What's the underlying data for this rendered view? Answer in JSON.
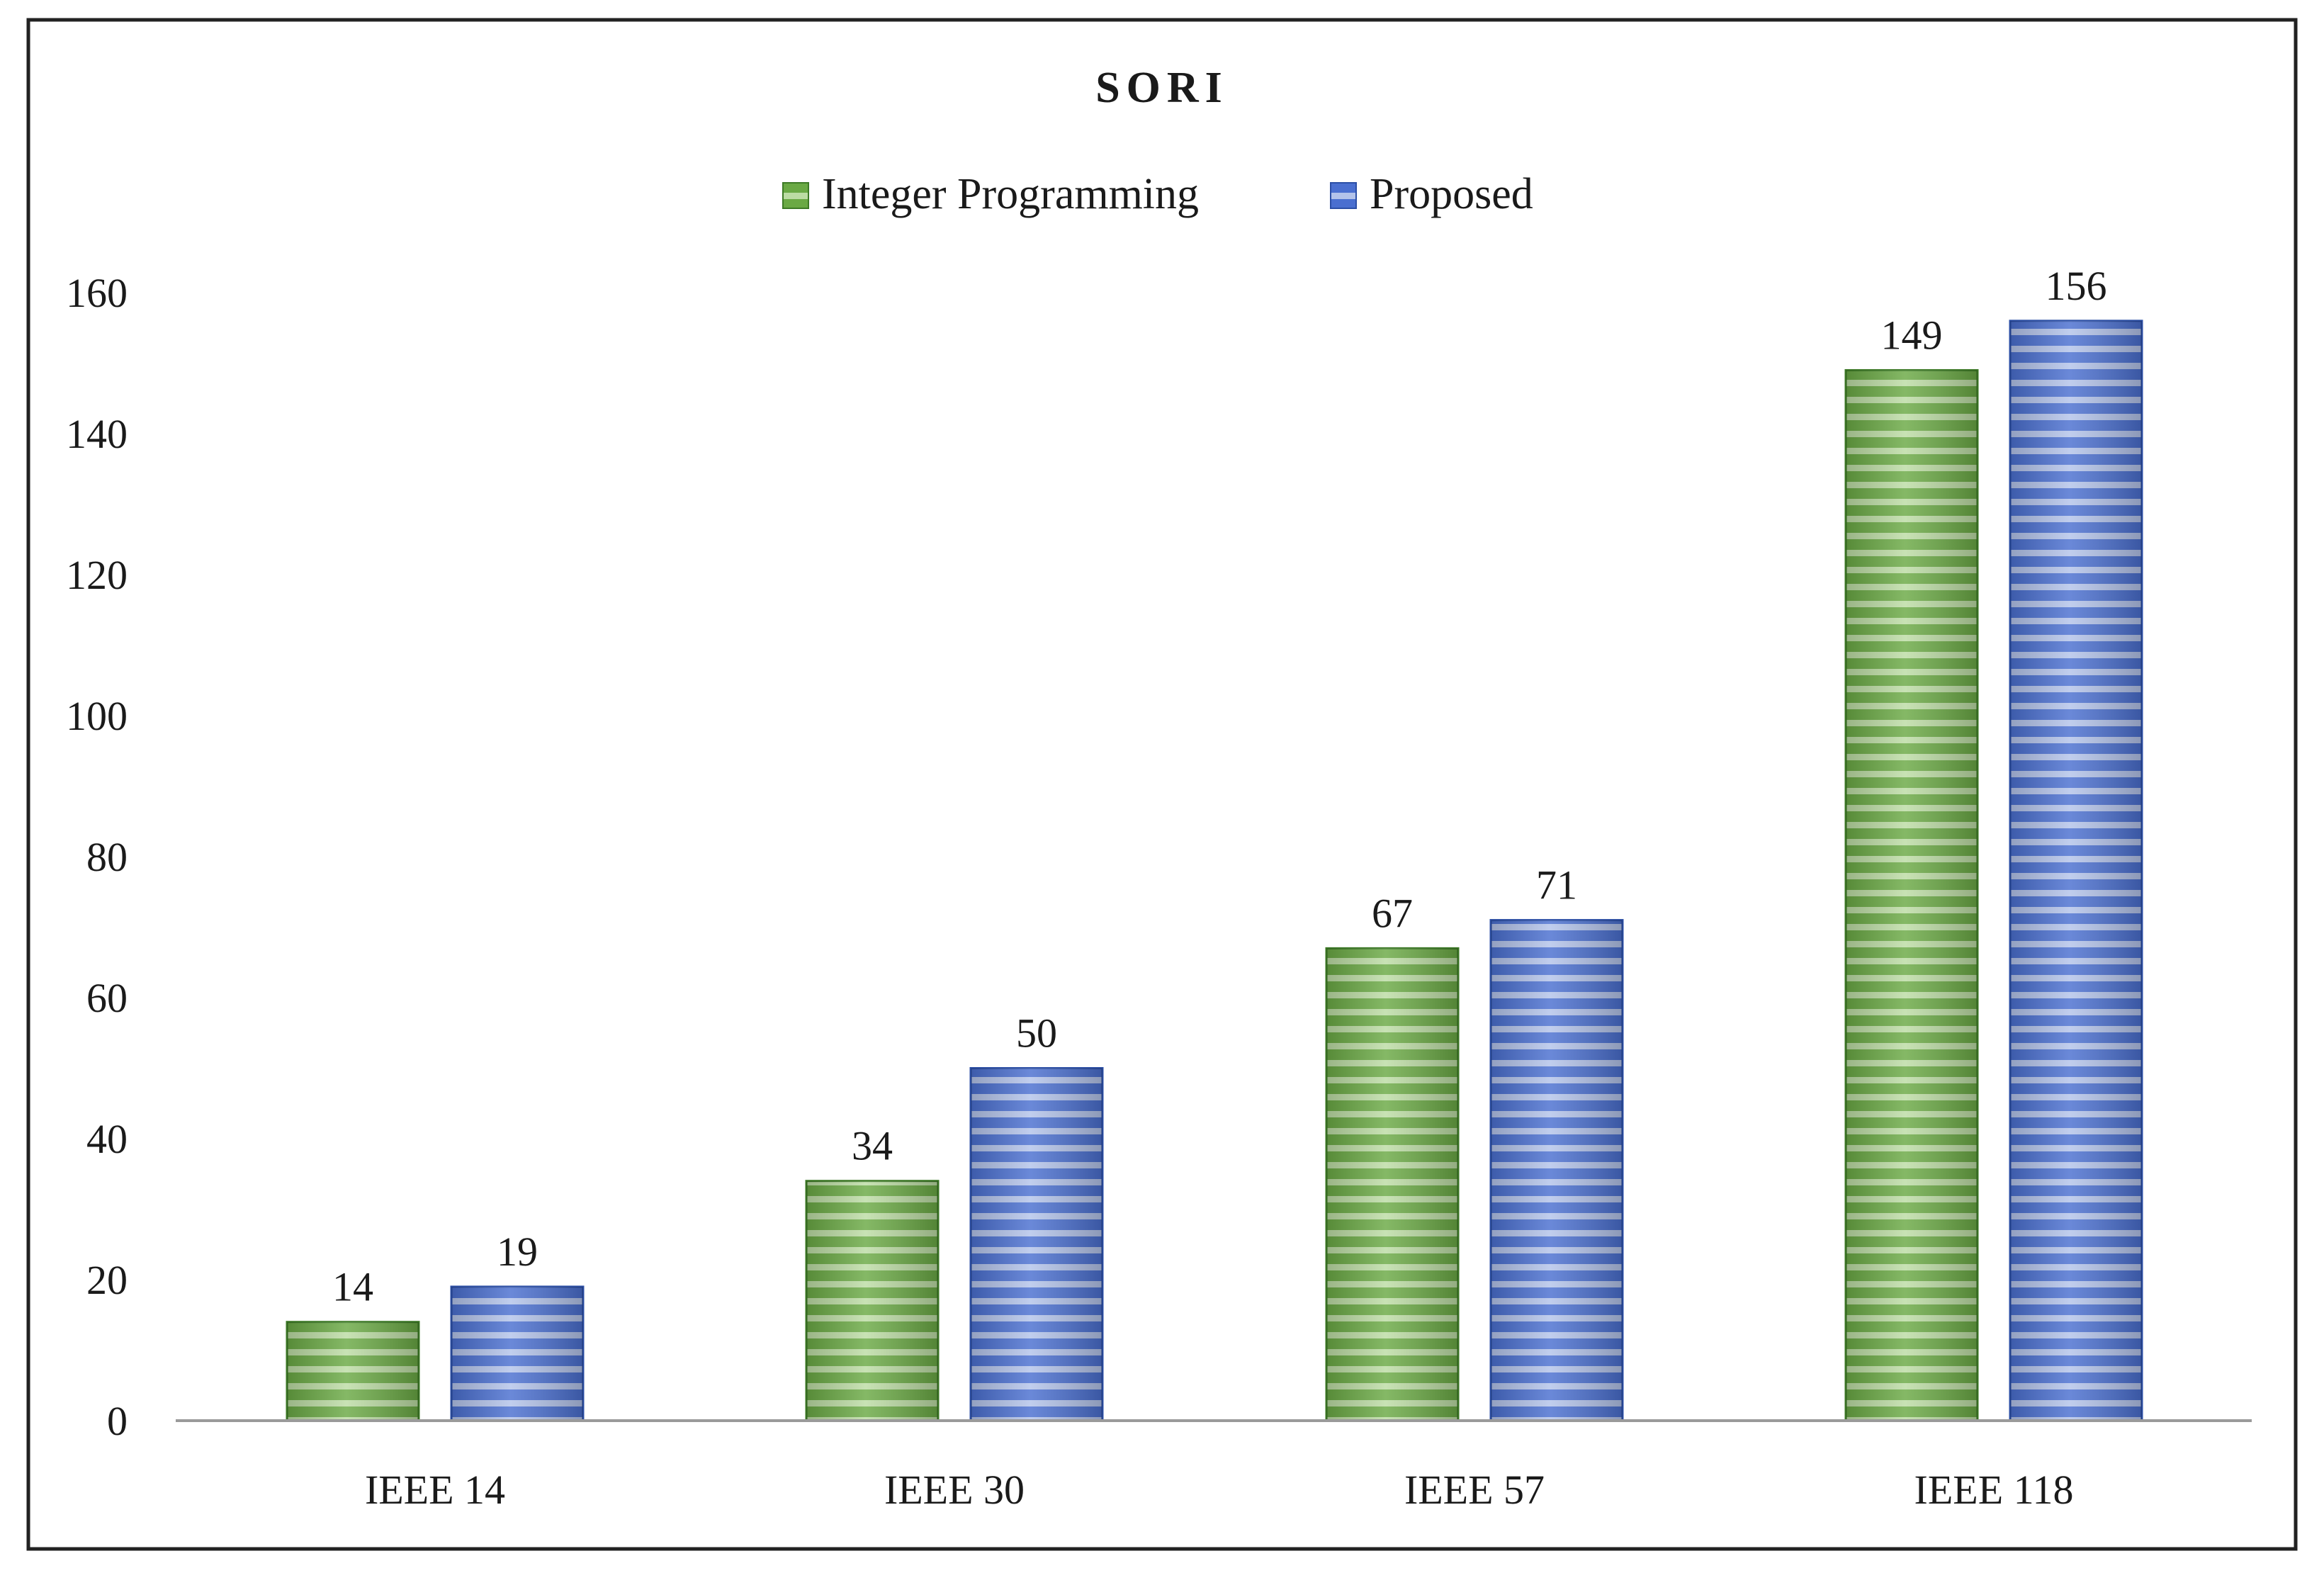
{
  "chart_data": {
    "type": "bar",
    "title": "SORI",
    "xlabel": "",
    "ylabel": "",
    "categories": [
      "IEEE 14",
      "IEEE 30",
      "IEEE 57",
      "IEEE 118"
    ],
    "series": [
      {
        "name": "Integer Programming",
        "values": [
          14,
          34,
          67,
          149
        ],
        "color": "#70ad47"
      },
      {
        "name": "Proposed",
        "values": [
          19,
          50,
          71,
          156
        ],
        "color": "#4472c4"
      }
    ],
    "ylim": [
      0,
      160
    ],
    "yticks": [
      "0",
      "20",
      "40",
      "60",
      "80",
      "100",
      "120",
      "140",
      "160"
    ],
    "data_labels": [
      [
        "14",
        "34",
        "67",
        "149"
      ],
      [
        "19",
        "50",
        "71",
        "156"
      ]
    ],
    "grid": false,
    "legend": "top-center"
  }
}
